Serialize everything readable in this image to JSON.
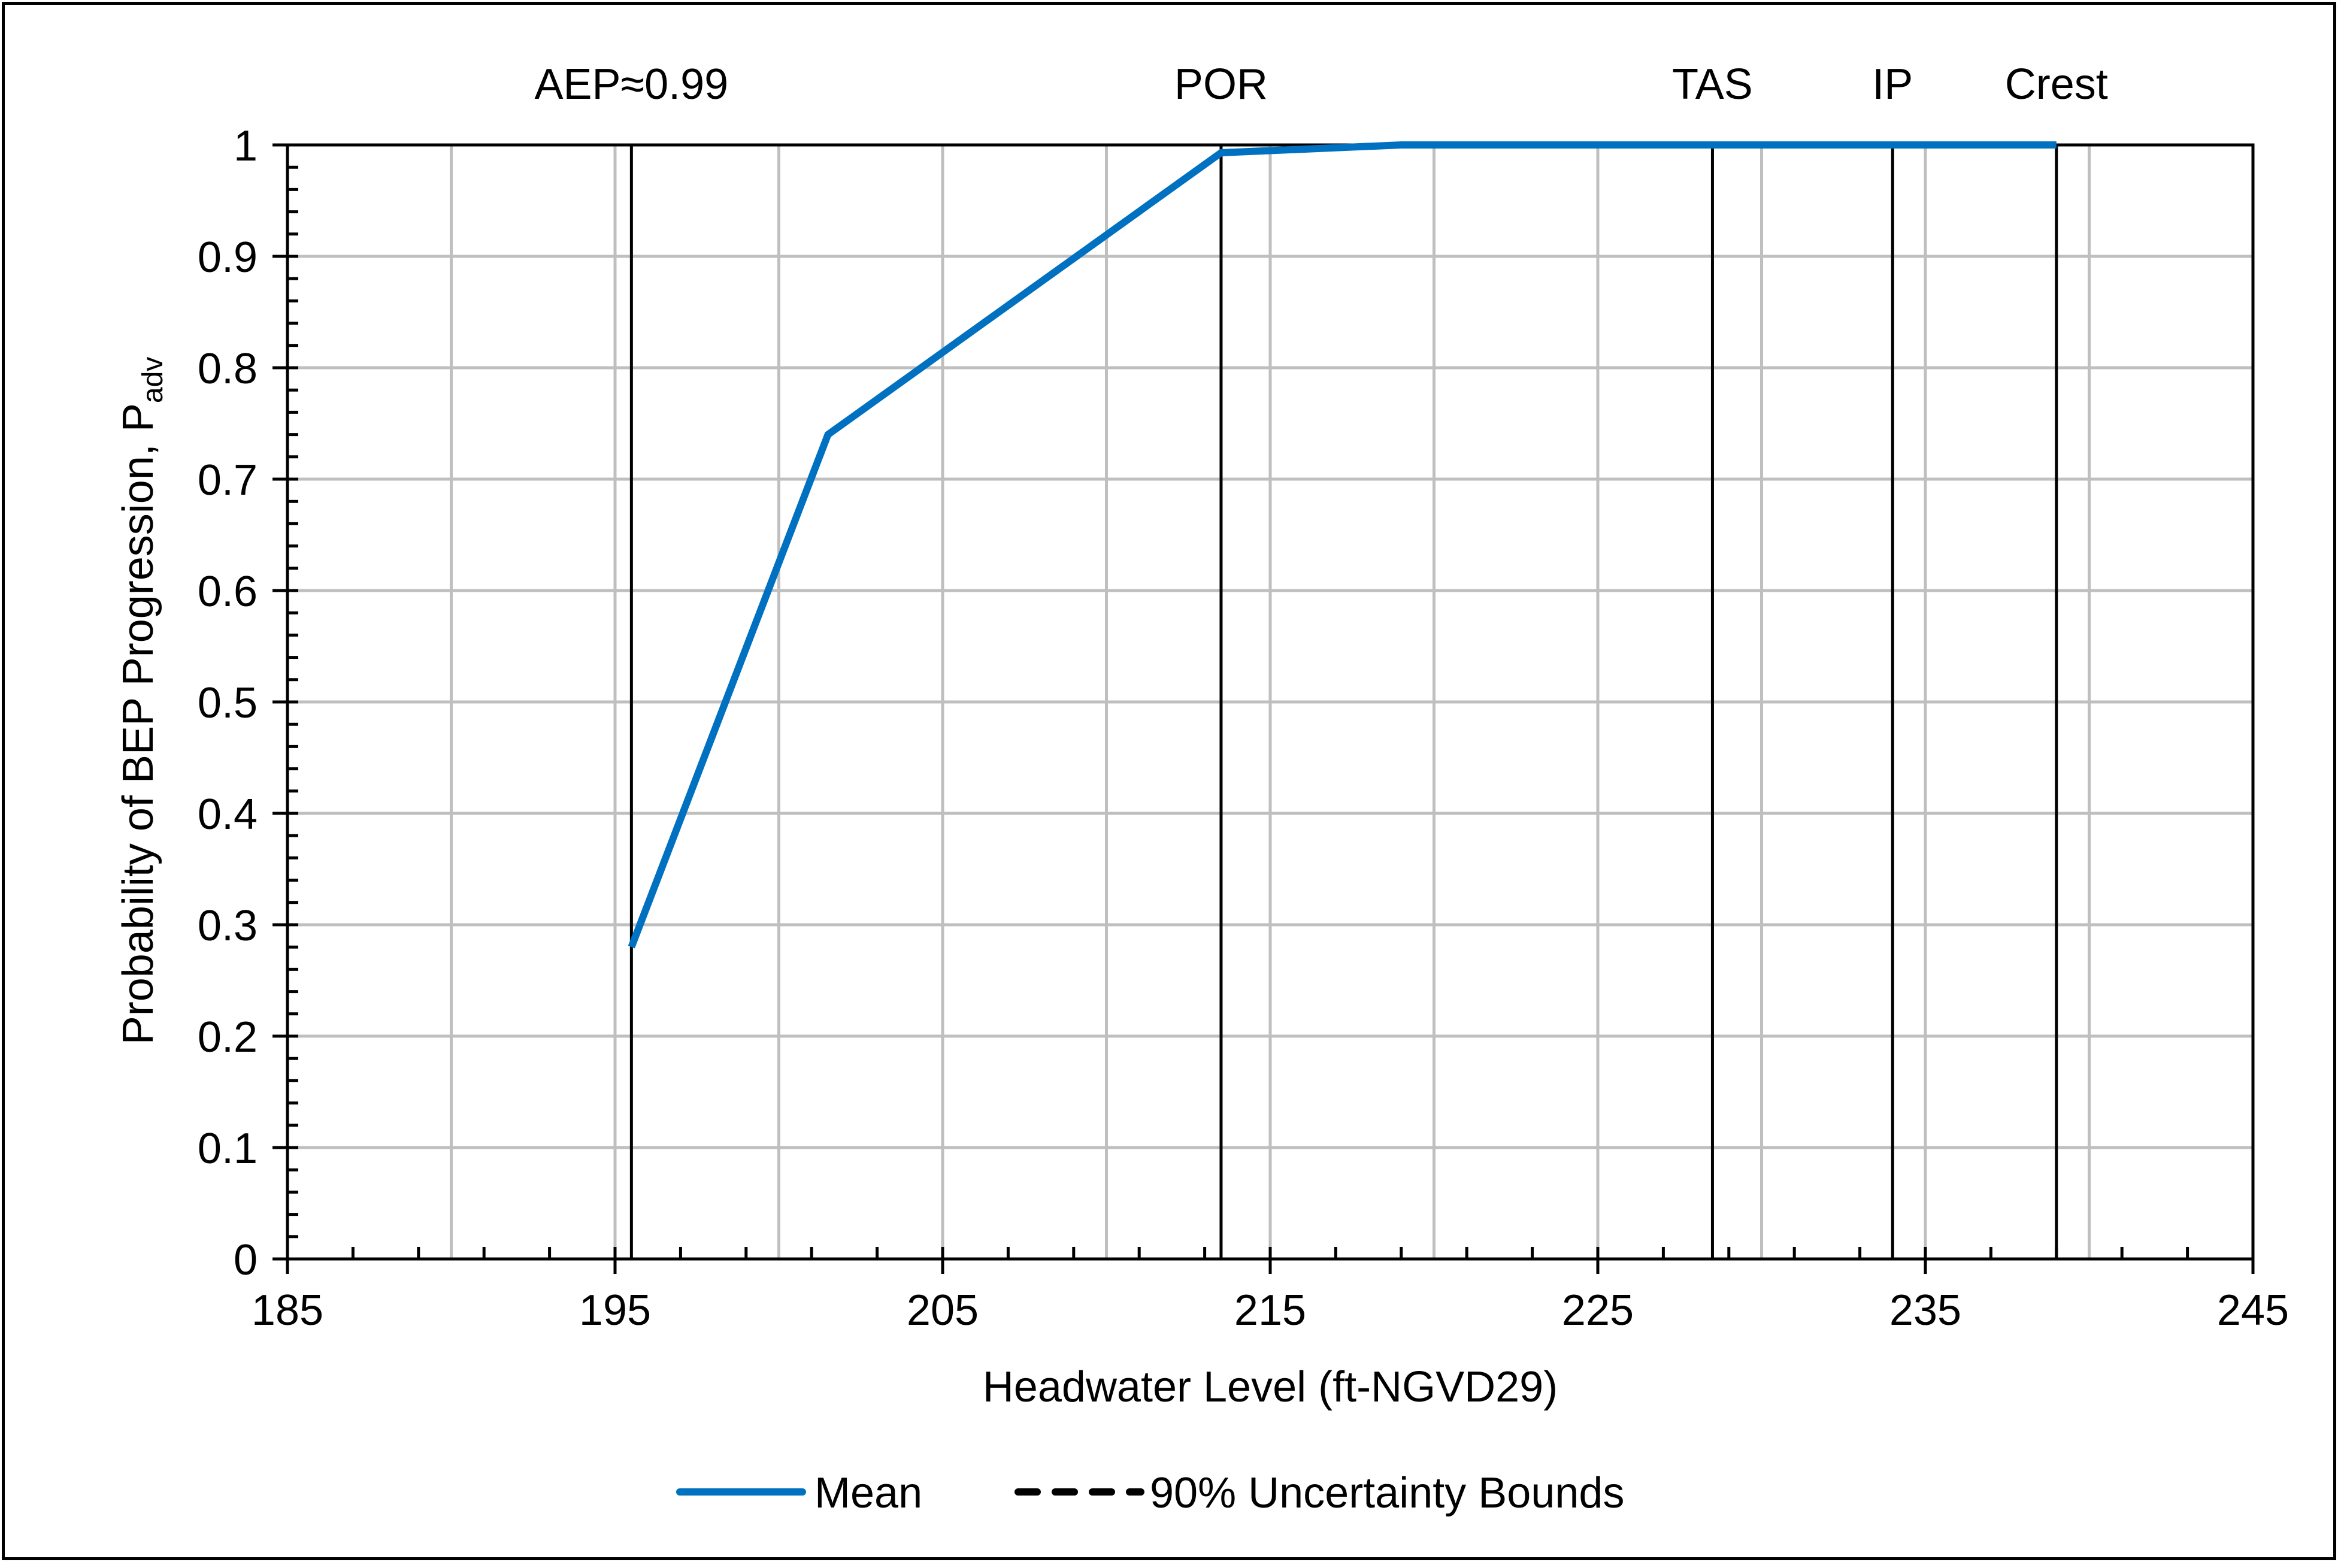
{
  "chart_data": {
    "type": "line",
    "title": "",
    "xlabel": "Headwater Level (ft-NGVD29)",
    "ylabel": "Probability of BEP Progression, P",
    "ylabel_subscript": "adv",
    "xlim": [
      185,
      245
    ],
    "ylim": [
      0,
      1
    ],
    "x_ticks": [
      "185",
      "195",
      "205",
      "215",
      "225",
      "235",
      "245"
    ],
    "y_ticks": [
      "0",
      "0.1",
      "0.2",
      "0.3",
      "0.4",
      "0.5",
      "0.6",
      "0.7",
      "0.8",
      "0.9",
      "1"
    ],
    "grid": true,
    "series": [
      {
        "name": "Mean",
        "color": "#0070C0",
        "style": "solid",
        "x": [
          195.5,
          201.5,
          213.5,
          219,
          225,
          230,
          235,
          239
        ],
        "values": [
          0.28,
          0.74,
          0.993,
          1.0,
          1.0,
          1.0,
          1.0,
          1.0
        ]
      },
      {
        "name": "90% Uncertainty Bounds",
        "color": "#000000",
        "style": "dashed",
        "x": [],
        "values": []
      }
    ],
    "reference_lines": [
      {
        "label": "AEP≈0.99",
        "x": 195.5
      },
      {
        "label": "POR",
        "x": 213.5
      },
      {
        "label": "TAS",
        "x": 228.5
      },
      {
        "label": "IP",
        "x": 234
      },
      {
        "label": "Crest",
        "x": 239
      }
    ],
    "legend": {
      "position": "bottom",
      "entries": [
        "Mean",
        "90% Uncertainty Bounds"
      ]
    }
  }
}
